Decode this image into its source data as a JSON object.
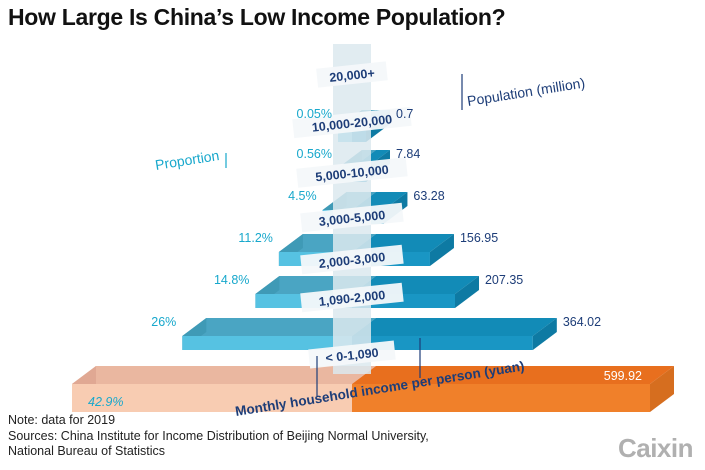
{
  "title": "How Large Is China’s Low Income Population?",
  "notes": {
    "note": "Note: data for 2019",
    "sources_line1": "Sources: China Institute for Income Distribution of Beijing Normal University,",
    "sources_line2": "National Bureau of Statistics"
  },
  "logo_text": "Caixin",
  "chart_data": {
    "type": "bar",
    "subtype": "population-pyramid (3D)",
    "left_axis_label": "Proportion",
    "right_axis_label": "Population (million)",
    "xlabel": "Monthly household income per person (yuan)",
    "categories": [
      "< 0-1,090",
      "1,090-2,000",
      "2,000-3,000",
      "3,000-5,000",
      "5,000-10,000",
      "10,000-20,000",
      "20,000+"
    ],
    "series": [
      {
        "name": "Proportion",
        "unit": "%",
        "values": [
          42.9,
          26,
          14.8,
          11.2,
          4.5,
          0.56,
          0.05
        ],
        "labels": [
          "42.9%",
          "26%",
          "14.8%",
          "11.2%",
          "4.5%",
          "0.56%",
          "0.05%"
        ]
      },
      {
        "name": "Population (million)",
        "unit": "million",
        "values": [
          599.92,
          364.02,
          207.35,
          156.95,
          63.28,
          7.84,
          0.7
        ],
        "labels": [
          "599.92",
          "364.02",
          "207.35",
          "156.95",
          "63.28",
          "7.84",
          "0.7"
        ]
      }
    ],
    "colors": {
      "bottom_left": "#f8ccb2",
      "bottom_left_side": "#e0a893",
      "bottom_left_top": "#eab7a0",
      "bottom_right": "#f0802a",
      "bottom_right_side": "#d66e1f",
      "bottom_right_top": "#e86f1e",
      "left_front": "#56c2e2",
      "left_side": "#3f9ab6",
      "left_top": "#4aa5c3",
      "right_front": "#1996c4",
      "right_side": "#0e7aa3",
      "right_top": "#128bb7",
      "pillar": "#dce9ef",
      "label_box": "#f4f8fa",
      "label_text": "#1d3d78",
      "pct_text": "#18a8cc",
      "pop_text": "#1d3d78",
      "bottom_value_text": "#ffffff"
    }
  }
}
